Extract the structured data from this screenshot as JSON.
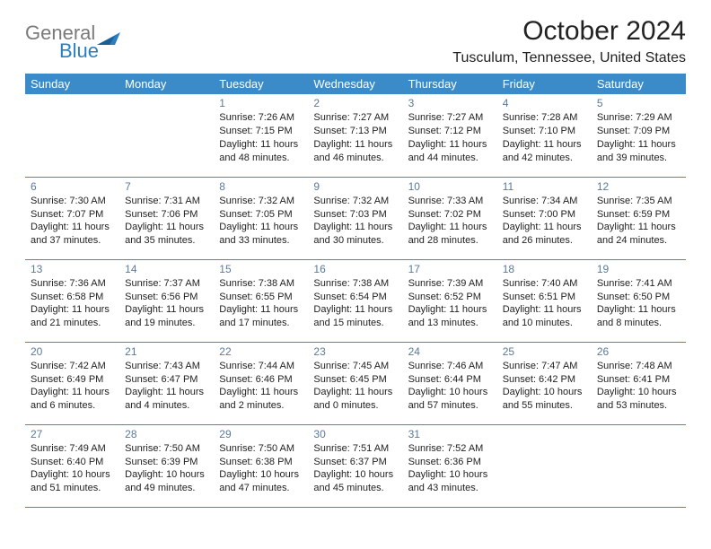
{
  "logo": {
    "gray": "General",
    "blue": "Blue"
  },
  "title": "October 2024",
  "location": "Tusculum, Tennessee, United States",
  "colors": {
    "header_bg": "#3b8bc9",
    "header_fg": "#ffffff",
    "border": "#3b8bc9",
    "daynum": "#5a7a9a",
    "logo_gray": "#7a7a7a",
    "logo_blue": "#2a7fc1",
    "text": "#222222",
    "background": "#ffffff"
  },
  "typography": {
    "title_fontsize": 30,
    "location_fontsize": 16,
    "header_fontsize": 13,
    "cell_fontsize": 11,
    "daynum_fontsize": 12,
    "logo_fontsize": 22
  },
  "columns": [
    "Sunday",
    "Monday",
    "Tuesday",
    "Wednesday",
    "Thursday",
    "Friday",
    "Saturday"
  ],
  "weeks": [
    [
      null,
      null,
      {
        "d": "1",
        "sr": "Sunrise: 7:26 AM",
        "ss": "Sunset: 7:15 PM",
        "dl": "Daylight: 11 hours and 48 minutes."
      },
      {
        "d": "2",
        "sr": "Sunrise: 7:27 AM",
        "ss": "Sunset: 7:13 PM",
        "dl": "Daylight: 11 hours and 46 minutes."
      },
      {
        "d": "3",
        "sr": "Sunrise: 7:27 AM",
        "ss": "Sunset: 7:12 PM",
        "dl": "Daylight: 11 hours and 44 minutes."
      },
      {
        "d": "4",
        "sr": "Sunrise: 7:28 AM",
        "ss": "Sunset: 7:10 PM",
        "dl": "Daylight: 11 hours and 42 minutes."
      },
      {
        "d": "5",
        "sr": "Sunrise: 7:29 AM",
        "ss": "Sunset: 7:09 PM",
        "dl": "Daylight: 11 hours and 39 minutes."
      }
    ],
    [
      {
        "d": "6",
        "sr": "Sunrise: 7:30 AM",
        "ss": "Sunset: 7:07 PM",
        "dl": "Daylight: 11 hours and 37 minutes."
      },
      {
        "d": "7",
        "sr": "Sunrise: 7:31 AM",
        "ss": "Sunset: 7:06 PM",
        "dl": "Daylight: 11 hours and 35 minutes."
      },
      {
        "d": "8",
        "sr": "Sunrise: 7:32 AM",
        "ss": "Sunset: 7:05 PM",
        "dl": "Daylight: 11 hours and 33 minutes."
      },
      {
        "d": "9",
        "sr": "Sunrise: 7:32 AM",
        "ss": "Sunset: 7:03 PM",
        "dl": "Daylight: 11 hours and 30 minutes."
      },
      {
        "d": "10",
        "sr": "Sunrise: 7:33 AM",
        "ss": "Sunset: 7:02 PM",
        "dl": "Daylight: 11 hours and 28 minutes."
      },
      {
        "d": "11",
        "sr": "Sunrise: 7:34 AM",
        "ss": "Sunset: 7:00 PM",
        "dl": "Daylight: 11 hours and 26 minutes."
      },
      {
        "d": "12",
        "sr": "Sunrise: 7:35 AM",
        "ss": "Sunset: 6:59 PM",
        "dl": "Daylight: 11 hours and 24 minutes."
      }
    ],
    [
      {
        "d": "13",
        "sr": "Sunrise: 7:36 AM",
        "ss": "Sunset: 6:58 PM",
        "dl": "Daylight: 11 hours and 21 minutes."
      },
      {
        "d": "14",
        "sr": "Sunrise: 7:37 AM",
        "ss": "Sunset: 6:56 PM",
        "dl": "Daylight: 11 hours and 19 minutes."
      },
      {
        "d": "15",
        "sr": "Sunrise: 7:38 AM",
        "ss": "Sunset: 6:55 PM",
        "dl": "Daylight: 11 hours and 17 minutes."
      },
      {
        "d": "16",
        "sr": "Sunrise: 7:38 AM",
        "ss": "Sunset: 6:54 PM",
        "dl": "Daylight: 11 hours and 15 minutes."
      },
      {
        "d": "17",
        "sr": "Sunrise: 7:39 AM",
        "ss": "Sunset: 6:52 PM",
        "dl": "Daylight: 11 hours and 13 minutes."
      },
      {
        "d": "18",
        "sr": "Sunrise: 7:40 AM",
        "ss": "Sunset: 6:51 PM",
        "dl": "Daylight: 11 hours and 10 minutes."
      },
      {
        "d": "19",
        "sr": "Sunrise: 7:41 AM",
        "ss": "Sunset: 6:50 PM",
        "dl": "Daylight: 11 hours and 8 minutes."
      }
    ],
    [
      {
        "d": "20",
        "sr": "Sunrise: 7:42 AM",
        "ss": "Sunset: 6:49 PM",
        "dl": "Daylight: 11 hours and 6 minutes."
      },
      {
        "d": "21",
        "sr": "Sunrise: 7:43 AM",
        "ss": "Sunset: 6:47 PM",
        "dl": "Daylight: 11 hours and 4 minutes."
      },
      {
        "d": "22",
        "sr": "Sunrise: 7:44 AM",
        "ss": "Sunset: 6:46 PM",
        "dl": "Daylight: 11 hours and 2 minutes."
      },
      {
        "d": "23",
        "sr": "Sunrise: 7:45 AM",
        "ss": "Sunset: 6:45 PM",
        "dl": "Daylight: 11 hours and 0 minutes."
      },
      {
        "d": "24",
        "sr": "Sunrise: 7:46 AM",
        "ss": "Sunset: 6:44 PM",
        "dl": "Daylight: 10 hours and 57 minutes."
      },
      {
        "d": "25",
        "sr": "Sunrise: 7:47 AM",
        "ss": "Sunset: 6:42 PM",
        "dl": "Daylight: 10 hours and 55 minutes."
      },
      {
        "d": "26",
        "sr": "Sunrise: 7:48 AM",
        "ss": "Sunset: 6:41 PM",
        "dl": "Daylight: 10 hours and 53 minutes."
      }
    ],
    [
      {
        "d": "27",
        "sr": "Sunrise: 7:49 AM",
        "ss": "Sunset: 6:40 PM",
        "dl": "Daylight: 10 hours and 51 minutes."
      },
      {
        "d": "28",
        "sr": "Sunrise: 7:50 AM",
        "ss": "Sunset: 6:39 PM",
        "dl": "Daylight: 10 hours and 49 minutes."
      },
      {
        "d": "29",
        "sr": "Sunrise: 7:50 AM",
        "ss": "Sunset: 6:38 PM",
        "dl": "Daylight: 10 hours and 47 minutes."
      },
      {
        "d": "30",
        "sr": "Sunrise: 7:51 AM",
        "ss": "Sunset: 6:37 PM",
        "dl": "Daylight: 10 hours and 45 minutes."
      },
      {
        "d": "31",
        "sr": "Sunrise: 7:52 AM",
        "ss": "Sunset: 6:36 PM",
        "dl": "Daylight: 10 hours and 43 minutes."
      },
      null,
      null
    ]
  ]
}
